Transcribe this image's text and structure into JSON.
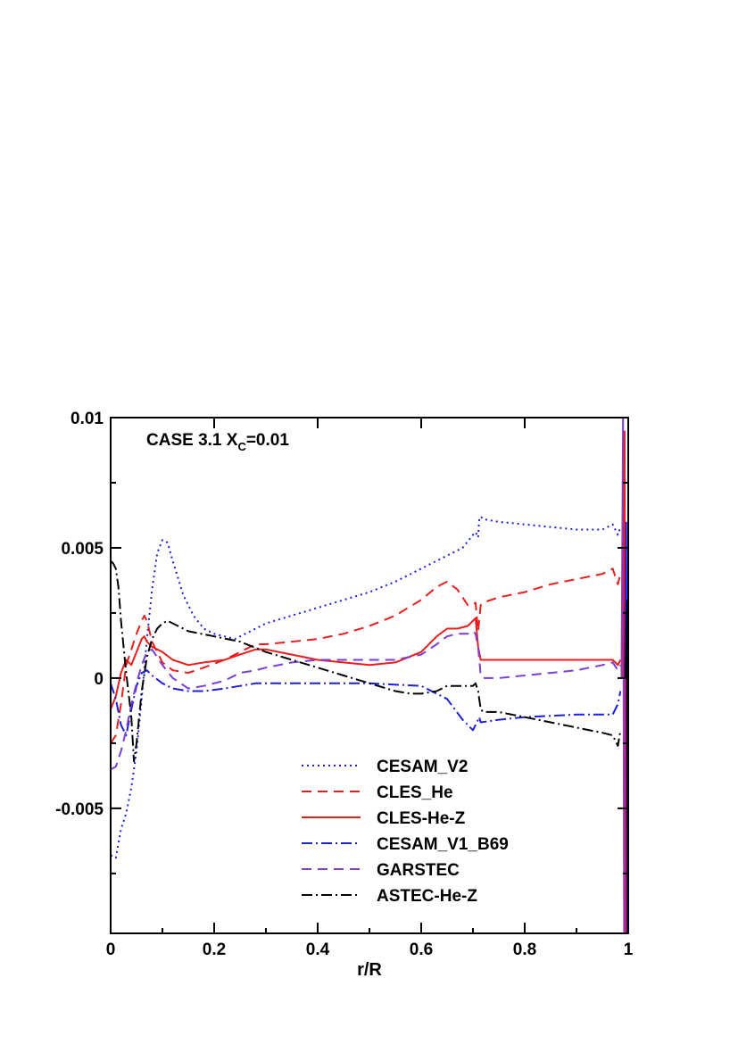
{
  "chart_data": {
    "type": "line",
    "title": "",
    "xlabel": "r/R",
    "ylabel": "",
    "xlim": [
      0,
      1
    ],
    "ylim": [
      -0.0098,
      0.01
    ],
    "x_ticks": [
      {
        "value": 0,
        "label": "0"
      },
      {
        "value": 0.2,
        "label": "0.2"
      },
      {
        "value": 0.4,
        "label": "0.4"
      },
      {
        "value": 0.6,
        "label": "0.6"
      },
      {
        "value": 0.8,
        "label": "0.8"
      },
      {
        "value": 1,
        "label": "1"
      }
    ],
    "y_ticks": [
      {
        "value": 0.01,
        "label": "0.01"
      },
      {
        "value": 0.005,
        "label": "0.005"
      },
      {
        "value": 0,
        "label": "0"
      },
      {
        "value": -0.005,
        "label": "-0.005"
      }
    ],
    "grid": false,
    "legend_position": "bottom-center",
    "annotation": {
      "main": "CASE 3.1 X",
      "sub": "C",
      "suffix": "=0.01"
    },
    "series": [
      {
        "name": "CESAM_V2",
        "color": "#1f1fe0",
        "dash": "2,4",
        "x": [
          0,
          0.01,
          0.02,
          0.03,
          0.04,
          0.05,
          0.06,
          0.07,
          0.08,
          0.09,
          0.1,
          0.11,
          0.12,
          0.14,
          0.16,
          0.18,
          0.2,
          0.22,
          0.24,
          0.26,
          0.28,
          0.3,
          0.35,
          0.4,
          0.45,
          0.5,
          0.55,
          0.6,
          0.65,
          0.68,
          0.7,
          0.705,
          0.71,
          0.712,
          0.715,
          0.72,
          0.75,
          0.8,
          0.85,
          0.9,
          0.95,
          0.97,
          0.98,
          0.985
        ],
        "y": [
          -0.0068,
          -0.0069,
          -0.0058,
          -0.0052,
          -0.0042,
          -0.0028,
          -0.0008,
          0.0015,
          0.0034,
          0.0048,
          0.0053,
          0.0052,
          0.0045,
          0.0032,
          0.0024,
          0.0019,
          0.0017,
          0.0016,
          0.0015,
          0.0017,
          0.0019,
          0.0021,
          0.0024,
          0.0027,
          0.003,
          0.0033,
          0.0037,
          0.0042,
          0.0047,
          0.005,
          0.0055,
          0.0056,
          0.0054,
          0.0061,
          0.0062,
          0.0061,
          0.006,
          0.0059,
          0.0058,
          0.0057,
          0.0057,
          0.0059,
          0.0055,
          0.0058
        ]
      },
      {
        "name": "CLES_He",
        "color": "#ee1c1c",
        "dash": "11,7",
        "x": [
          0,
          0.01,
          0.02,
          0.03,
          0.04,
          0.05,
          0.06,
          0.065,
          0.07,
          0.08,
          0.1,
          0.12,
          0.15,
          0.18,
          0.22,
          0.25,
          0.28,
          0.3,
          0.35,
          0.4,
          0.45,
          0.5,
          0.55,
          0.6,
          0.63,
          0.65,
          0.67,
          0.69,
          0.7,
          0.705,
          0.71,
          0.715,
          0.72,
          0.75,
          0.8,
          0.85,
          0.9,
          0.95,
          0.97,
          0.98,
          0.985
        ],
        "y": [
          -0.0025,
          -0.0022,
          -0.001,
          0.0005,
          0.0011,
          0.0017,
          0.0022,
          0.0024,
          0.0022,
          0.0014,
          0.0006,
          0.0003,
          0.0002,
          0.0004,
          0.0007,
          0.001,
          0.0013,
          0.0013,
          0.0014,
          0.0015,
          0.0017,
          0.002,
          0.0024,
          0.003,
          0.0035,
          0.0037,
          0.0034,
          0.0028,
          0.0028,
          0.0029,
          0.0018,
          0.0028,
          0.0029,
          0.0031,
          0.0033,
          0.0036,
          0.0038,
          0.004,
          0.0042,
          0.0036,
          0.004
        ]
      },
      {
        "name": "CLES-He-Z",
        "color": "#ee1c1c",
        "dash": "",
        "x": [
          0,
          0.01,
          0.02,
          0.03,
          0.04,
          0.05,
          0.06,
          0.065,
          0.07,
          0.08,
          0.1,
          0.12,
          0.15,
          0.18,
          0.22,
          0.25,
          0.28,
          0.3,
          0.35,
          0.4,
          0.45,
          0.5,
          0.55,
          0.6,
          0.63,
          0.65,
          0.67,
          0.69,
          0.7,
          0.705,
          0.71,
          0.715,
          0.72,
          0.75,
          0.8,
          0.85,
          0.9,
          0.95,
          0.97,
          0.98,
          0.985
        ],
        "y": [
          -0.0012,
          -0.0007,
          0.0002,
          0.0007,
          0.0005,
          0.001,
          0.0015,
          0.0016,
          0.0014,
          0.0012,
          0.001,
          0.0007,
          0.0005,
          0.0006,
          0.0007,
          0.0009,
          0.0011,
          0.0011,
          0.0009,
          0.0007,
          0.0006,
          0.0005,
          0.0006,
          0.001,
          0.0016,
          0.0019,
          0.0019,
          0.002,
          0.0022,
          0.0023,
          0.0012,
          0.0007,
          0.0007,
          0.0007,
          0.0007,
          0.0007,
          0.0007,
          0.0007,
          0.0007,
          0.0005,
          0.0007
        ]
      },
      {
        "name": "CESAM_V1_B69",
        "color": "#1f1fe0",
        "dash": "12,4,2,4",
        "x": [
          0,
          0.01,
          0.02,
          0.03,
          0.04,
          0.05,
          0.06,
          0.07,
          0.08,
          0.1,
          0.12,
          0.15,
          0.18,
          0.22,
          0.25,
          0.28,
          0.3,
          0.4,
          0.5,
          0.6,
          0.65,
          0.68,
          0.7,
          0.705,
          0.71,
          0.712,
          0.715,
          0.75,
          0.8,
          0.9,
          0.97,
          0.98,
          0.985
        ],
        "y": [
          -0.0002,
          -0.0008,
          -0.0018,
          -0.0022,
          -0.0012,
          -0.0003,
          0.0002,
          0.0003,
          0.0001,
          -0.0002,
          -0.0004,
          -0.0005,
          -0.0005,
          -0.0004,
          -0.0003,
          -0.0002,
          -0.0002,
          -0.0002,
          -0.0002,
          -0.0003,
          -0.0008,
          -0.0016,
          -0.002,
          -0.0018,
          -0.0016,
          -0.0015,
          -0.0017,
          -0.0016,
          -0.0015,
          -0.0014,
          -0.0014,
          -0.001,
          -0.0005
        ]
      },
      {
        "name": "GARSTEC",
        "color": "#7a3fd6",
        "dash": "11,7",
        "x": [
          0,
          0.01,
          0.02,
          0.03,
          0.04,
          0.05,
          0.06,
          0.07,
          0.08,
          0.1,
          0.12,
          0.15,
          0.18,
          0.22,
          0.25,
          0.28,
          0.3,
          0.35,
          0.4,
          0.45,
          0.5,
          0.55,
          0.6,
          0.63,
          0.65,
          0.67,
          0.69,
          0.7,
          0.705,
          0.71,
          0.715,
          0.72,
          0.75,
          0.8,
          0.85,
          0.9,
          0.95,
          0.97,
          0.98,
          0.985
        ],
        "y": [
          -0.0035,
          -0.0034,
          -0.0028,
          -0.002,
          -0.001,
          -0.0002,
          0.0005,
          0.001,
          0.0011,
          0.0005,
          0.0,
          -0.0004,
          -0.0003,
          -0.0001,
          0.0002,
          0.0003,
          0.0004,
          0.0006,
          0.0007,
          0.0007,
          0.0007,
          0.0007,
          0.0009,
          0.0013,
          0.0016,
          0.0017,
          0.0017,
          0.0018,
          0.0017,
          0.0012,
          0.0001,
          0.0,
          0.0,
          0.0001,
          0.0002,
          0.0003,
          0.0005,
          0.0006,
          0.0003,
          0.0005
        ]
      },
      {
        "name": "ASTEC-He-Z",
        "color": "#000000",
        "dash": "12,4,2,4",
        "x": [
          0,
          0.005,
          0.01,
          0.015,
          0.02,
          0.03,
          0.04,
          0.045,
          0.05,
          0.06,
          0.07,
          0.08,
          0.09,
          0.1,
          0.11,
          0.13,
          0.15,
          0.2,
          0.25,
          0.3,
          0.35,
          0.4,
          0.45,
          0.5,
          0.55,
          0.58,
          0.6,
          0.63,
          0.65,
          0.67,
          0.69,
          0.7,
          0.705,
          0.71,
          0.715,
          0.72,
          0.75,
          0.8,
          0.85,
          0.9,
          0.95,
          0.97,
          0.98,
          0.985
        ],
        "y": [
          0.0045,
          0.0044,
          0.0042,
          0.0035,
          0.0022,
          0.0002,
          -0.0015,
          -0.0032,
          -0.0025,
          -0.0005,
          0.0008,
          0.0015,
          0.0019,
          0.0021,
          0.0022,
          0.002,
          0.0018,
          0.0016,
          0.0014,
          0.001,
          0.0007,
          0.0004,
          0.0001,
          -0.0002,
          -0.0005,
          -0.0006,
          -0.0006,
          -0.0005,
          -0.0003,
          -0.0003,
          -0.0003,
          -0.0003,
          -0.0002,
          -0.0005,
          -0.0012,
          -0.0013,
          -0.0013,
          -0.0015,
          -0.0017,
          -0.0019,
          -0.0021,
          -0.0022,
          -0.0026,
          -0.002
        ]
      }
    ]
  }
}
